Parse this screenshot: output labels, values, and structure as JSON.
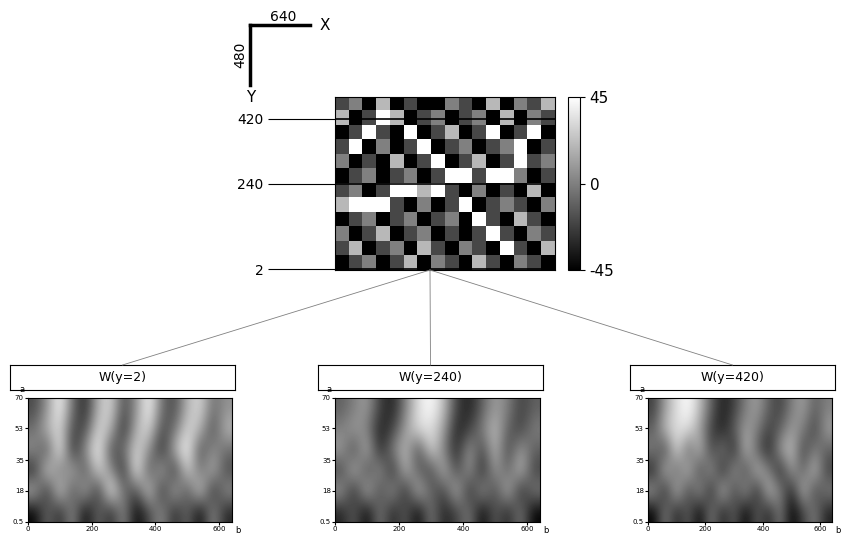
{
  "size_indicator": {
    "x_label": "X",
    "x_size": 640,
    "y_label": "Y",
    "y_size": 480
  },
  "chart_data": [
    {
      "type": "heatmap",
      "xlim": [
        0,
        640
      ],
      "ylim": [
        0,
        480
      ],
      "yticks": [
        420,
        240,
        2
      ],
      "tick_labels": "y",
      "cells": [
        [
          -20,
          0,
          -45,
          20,
          -45,
          -20,
          -45,
          -45,
          0,
          -20,
          -45,
          20,
          -45,
          0,
          -20,
          20
        ],
        [
          20,
          -45,
          -20,
          45,
          20,
          -45,
          -20,
          0,
          -45,
          -20,
          0,
          -45,
          20,
          -45,
          0,
          -20
        ],
        [
          -45,
          -20,
          45,
          -20,
          -45,
          45,
          -45,
          -20,
          20,
          -45,
          -20,
          45,
          -45,
          -20,
          45,
          -45
        ],
        [
          -20,
          45,
          -45,
          0,
          -45,
          -20,
          45,
          -45,
          -20,
          0,
          -45,
          -20,
          0,
          45,
          -45,
          -20
        ],
        [
          0,
          -45,
          -20,
          -45,
          20,
          -45,
          -20,
          45,
          -45,
          -20,
          20,
          -45,
          -20,
          45,
          -20,
          0
        ],
        [
          -45,
          -20,
          0,
          -45,
          -20,
          0,
          -45,
          -20,
          45,
          45,
          -20,
          45,
          45,
          0,
          -45,
          -20
        ],
        [
          -20,
          0,
          -45,
          -20,
          45,
          45,
          20,
          45,
          -20,
          -45,
          0,
          -45,
          -20,
          -45,
          20,
          -45
        ],
        [
          20,
          45,
          45,
          45,
          -20,
          -45,
          0,
          -45,
          -20,
          45,
          -45,
          -20,
          0,
          -20,
          -45,
          0
        ],
        [
          -45,
          -20,
          0,
          -45,
          -20,
          0,
          -45,
          -20,
          0,
          -45,
          45,
          -20,
          -45,
          20,
          -20,
          -45
        ],
        [
          0,
          -45,
          -20,
          20,
          -45,
          -20,
          0,
          -45,
          -20,
          -45,
          -20,
          45,
          -20,
          -45,
          0,
          -20
        ],
        [
          -20,
          20,
          -45,
          -20,
          0,
          -45,
          20,
          -20,
          -45,
          0,
          -20,
          -45,
          45,
          -20,
          -45,
          20
        ],
        [
          -45,
          -20,
          0,
          -45,
          -20,
          20,
          -45,
          0,
          -20,
          -45,
          20,
          -20,
          -45,
          0,
          -20,
          -45
        ]
      ],
      "colorbar": {
        "range": [
          -45,
          45
        ],
        "ticks": [
          -45,
          0,
          45
        ]
      }
    },
    {
      "type": "heatmap",
      "title": "W(y=2)",
      "x_label": "b",
      "y_label": "a",
      "xlim": [
        0,
        640
      ],
      "ylim": [
        0.5,
        70
      ],
      "xticks": [
        0,
        200,
        400,
        600
      ],
      "yticks": [
        0.5,
        18,
        35,
        53,
        70
      ],
      "cells": [
        [
          0.3,
          0.5,
          0.8,
          0.4,
          0.2,
          0.6,
          0.7,
          0.3,
          0.5,
          0.8,
          0.4,
          0.3,
          0.6,
          0.7,
          0.4,
          0.5
        ],
        [
          0.4,
          0.6,
          0.7,
          0.3,
          0.3,
          0.7,
          0.6,
          0.2,
          0.6,
          0.7,
          0.3,
          0.4,
          0.7,
          0.6,
          0.3,
          0.6
        ],
        [
          0.5,
          0.3,
          0.8,
          0.2,
          0.5,
          0.8,
          0.3,
          0.4,
          0.7,
          0.5,
          0.2,
          0.6,
          0.8,
          0.3,
          0.5,
          0.4
        ],
        [
          0.2,
          0.7,
          0.4,
          0.6,
          0.3,
          0.7,
          0.5,
          0.2,
          0.8,
          0.3,
          0.6,
          0.2,
          0.7,
          0.4,
          0.6,
          0.3
        ],
        [
          0.6,
          0.2,
          0.7,
          0.3,
          0.6,
          0.2,
          0.8,
          0.4,
          0.3,
          0.7,
          0.2,
          0.6,
          0.3,
          0.7,
          0.2,
          0.5
        ],
        [
          0.1,
          0.4,
          0.2,
          0.5,
          0.1,
          0.4,
          0.2,
          0.5,
          0.1,
          0.3,
          0.5,
          0.2,
          0.4,
          0.1,
          0.5,
          0.2
        ]
      ]
    },
    {
      "type": "heatmap",
      "title": "W(y=240)",
      "x_label": "b",
      "y_label": "a",
      "xlim": [
        0,
        640
      ],
      "ylim": [
        0.5,
        70
      ],
      "xticks": [
        0,
        200,
        400,
        600
      ],
      "yticks": [
        0.5,
        18,
        35,
        53,
        70
      ],
      "cells": [
        [
          0.4,
          0.5,
          0.6,
          0.3,
          0.2,
          0.5,
          0.8,
          0.9,
          0.7,
          0.3,
          0.2,
          0.4,
          0.6,
          0.5,
          0.3,
          0.4
        ],
        [
          0.5,
          0.6,
          0.5,
          0.2,
          0.3,
          0.6,
          0.8,
          0.8,
          0.6,
          0.2,
          0.3,
          0.5,
          0.7,
          0.4,
          0.3,
          0.5
        ],
        [
          0.6,
          0.3,
          0.7,
          0.2,
          0.5,
          0.7,
          0.3,
          0.8,
          0.5,
          0.2,
          0.6,
          0.3,
          0.7,
          0.3,
          0.6,
          0.4
        ],
        [
          0.3,
          0.7,
          0.3,
          0.6,
          0.2,
          0.7,
          0.4,
          0.3,
          0.7,
          0.3,
          0.6,
          0.2,
          0.6,
          0.4,
          0.7,
          0.3
        ],
        [
          0.6,
          0.2,
          0.7,
          0.3,
          0.6,
          0.2,
          0.7,
          0.4,
          0.3,
          0.7,
          0.2,
          0.6,
          0.3,
          0.7,
          0.2,
          0.5
        ],
        [
          0.2,
          0.4,
          0.1,
          0.5,
          0.2,
          0.4,
          0.1,
          0.5,
          0.2,
          0.3,
          0.5,
          0.1,
          0.4,
          0.2,
          0.5,
          0.1
        ]
      ]
    },
    {
      "type": "heatmap",
      "title": "W(y=420)",
      "x_label": "b",
      "y_label": "a",
      "xlim": [
        0,
        640
      ],
      "ylim": [
        0.5,
        70
      ],
      "xticks": [
        0,
        200,
        400,
        600
      ],
      "yticks": [
        0.5,
        18,
        35,
        53,
        70
      ],
      "cells": [
        [
          0.3,
          0.6,
          0.8,
          0.9,
          0.7,
          0.4,
          0.2,
          0.3,
          0.5,
          0.6,
          0.4,
          0.3,
          0.5,
          0.6,
          0.4,
          0.5
        ],
        [
          0.4,
          0.7,
          0.8,
          0.8,
          0.6,
          0.3,
          0.2,
          0.4,
          0.6,
          0.5,
          0.3,
          0.4,
          0.6,
          0.5,
          0.3,
          0.6
        ],
        [
          0.5,
          0.3,
          0.8,
          0.4,
          0.7,
          0.3,
          0.5,
          0.2,
          0.7,
          0.4,
          0.2,
          0.6,
          0.7,
          0.3,
          0.5,
          0.4
        ],
        [
          0.2,
          0.7,
          0.4,
          0.7,
          0.3,
          0.6,
          0.2,
          0.6,
          0.3,
          0.7,
          0.5,
          0.2,
          0.6,
          0.4,
          0.7,
          0.3
        ],
        [
          0.6,
          0.2,
          0.7,
          0.3,
          0.6,
          0.2,
          0.7,
          0.3,
          0.6,
          0.2,
          0.7,
          0.5,
          0.2,
          0.7,
          0.3,
          0.5
        ],
        [
          0.1,
          0.5,
          0.2,
          0.4,
          0.1,
          0.5,
          0.2,
          0.4,
          0.1,
          0.4,
          0.2,
          0.5,
          0.1,
          0.3,
          0.5,
          0.2
        ]
      ]
    }
  ]
}
